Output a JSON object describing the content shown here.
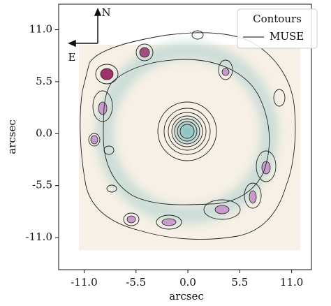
{
  "chart_data": {
    "type": "contour",
    "xlabel": "arcsec",
    "ylabel": "arcsec",
    "xlim": [
      -13.7,
      13.1
    ],
    "ylim": [
      -14.4,
      13.7
    ],
    "xticks": [
      {
        "value": -11,
        "label": "-11.0"
      },
      -5.5,
      {
        "value": 0,
        "label": "0.0"
      },
      5.5,
      {
        "value": 11,
        "label": "11.0"
      }
    ],
    "yticks": [
      {
        "value": -11,
        "label": "-11.0"
      },
      -5.5,
      {
        "value": 0,
        "label": "0.0"
      },
      5.5,
      {
        "value": 11,
        "label": "11.0"
      }
    ],
    "legend": {
      "title": "Contours",
      "entries": [
        "MUSE"
      ],
      "position": "upper right"
    },
    "compass": {
      "north": "N",
      "east": "E"
    },
    "color": "#000000"
  }
}
